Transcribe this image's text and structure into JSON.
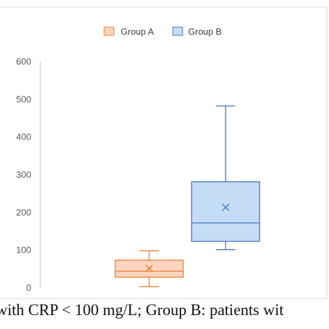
{
  "chart_data": {
    "type": "box",
    "title": "",
    "xlabel": "",
    "ylabel": "",
    "ylim": [
      0,
      600
    ],
    "yticks": [
      0,
      100,
      200,
      300,
      400,
      500,
      600
    ],
    "grid": false,
    "legend": "top-center",
    "series": [
      {
        "name": "Group A",
        "min": 2,
        "q1": 27,
        "median": 43,
        "q3": 72,
        "max": 97,
        "mean": 50,
        "fill": "#fbd5c0",
        "stroke": "#ed7d31"
      },
      {
        "name": "Group B",
        "min": 100,
        "q1": 122,
        "median": 171,
        "q3": 280,
        "max": 481,
        "mean": 212,
        "fill": "#c5dcf6",
        "stroke": "#4472c4"
      }
    ]
  },
  "caption": "with CRP < 100 mg/L; Group B: patients wit"
}
